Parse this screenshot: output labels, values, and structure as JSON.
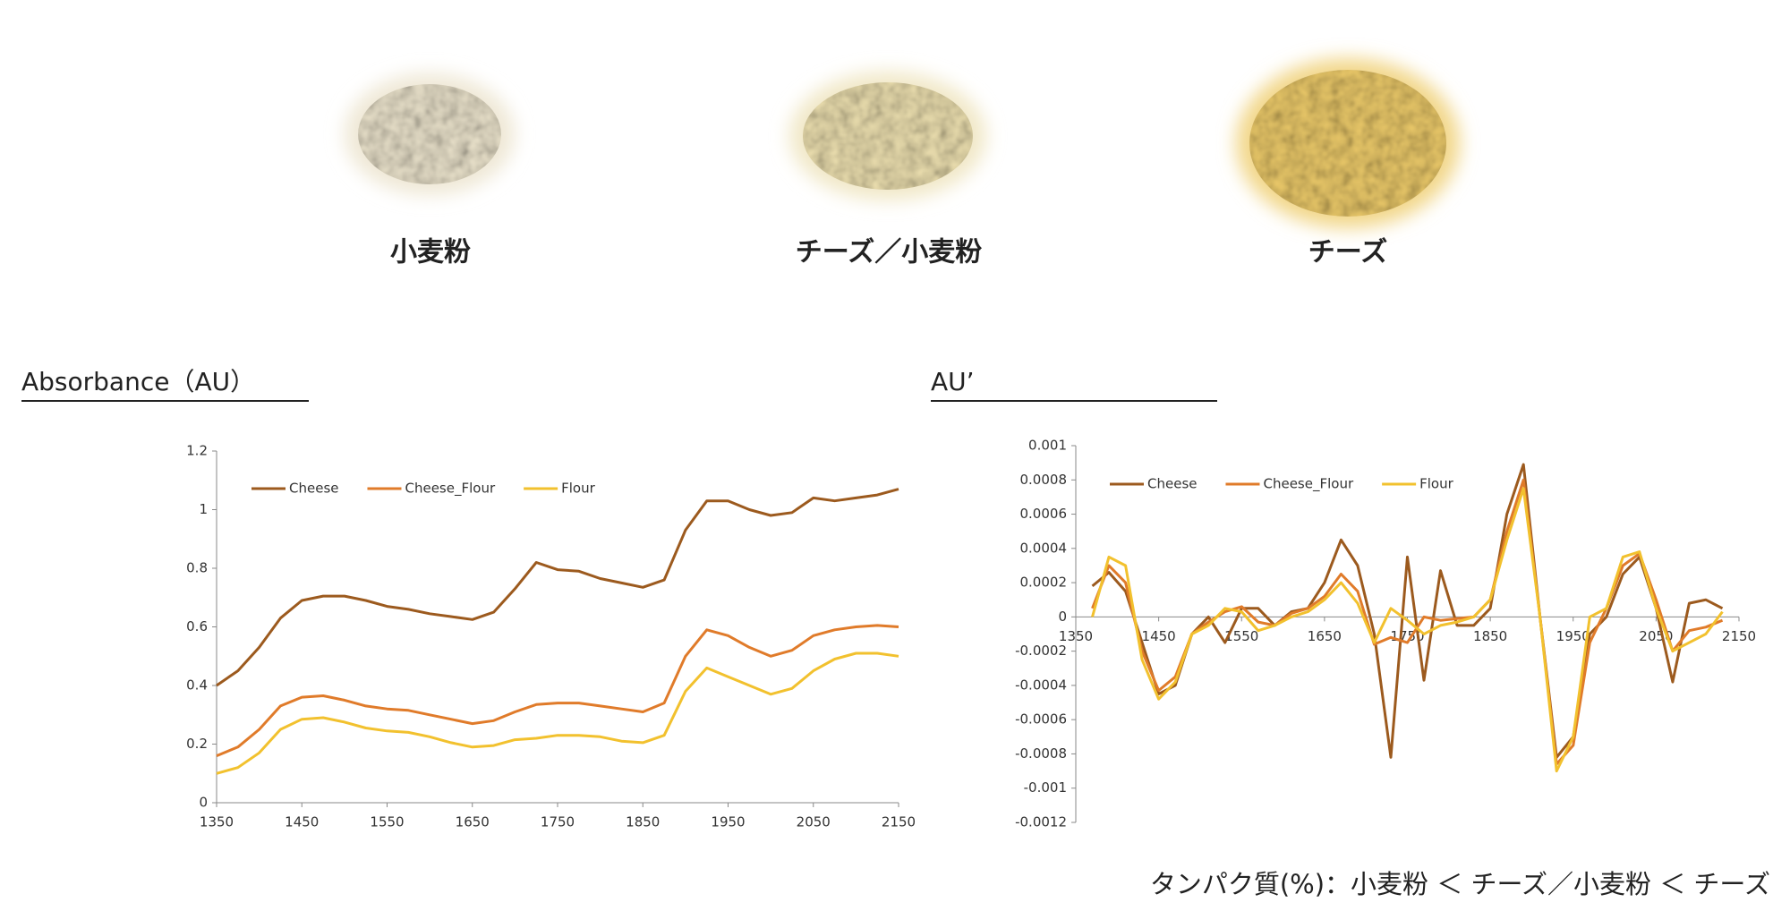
{
  "samples": [
    "小麦粉",
    "チーズ／小麦粉",
    "チーズ"
  ],
  "caption": "タンパク質(%)：小麦粉 ＜ チーズ／小麦粉 ＜ チーズ",
  "chart_data": [
    {
      "type": "line",
      "title": "Absorbance（AU）",
      "x": [
        1350,
        1375,
        1400,
        1425,
        1450,
        1475,
        1500,
        1525,
        1550,
        1575,
        1600,
        1625,
        1650,
        1675,
        1700,
        1725,
        1750,
        1775,
        1800,
        1825,
        1850,
        1875,
        1900,
        1925,
        1950,
        1975,
        2000,
        2025,
        2050,
        2075,
        2100,
        2125,
        2150
      ],
      "series": [
        {
          "name": "Cheese",
          "color": "#9c5a1e",
          "values": [
            0.4,
            0.45,
            0.53,
            0.63,
            0.69,
            0.705,
            0.705,
            0.69,
            0.67,
            0.66,
            0.645,
            0.635,
            0.625,
            0.65,
            0.73,
            0.82,
            0.795,
            0.79,
            0.765,
            0.75,
            0.735,
            0.76,
            0.93,
            1.03,
            1.03,
            1.0,
            0.98,
            0.99,
            1.04,
            1.03,
            1.04,
            1.05,
            1.07
          ]
        },
        {
          "name": "Cheese_Flour",
          "color": "#e07b2a",
          "values": [
            0.16,
            0.19,
            0.25,
            0.33,
            0.36,
            0.365,
            0.35,
            0.33,
            0.32,
            0.315,
            0.3,
            0.285,
            0.27,
            0.28,
            0.31,
            0.335,
            0.34,
            0.34,
            0.33,
            0.32,
            0.31,
            0.34,
            0.5,
            0.59,
            0.57,
            0.53,
            0.5,
            0.52,
            0.57,
            0.59,
            0.6,
            0.605,
            0.6
          ]
        },
        {
          "name": "Flour",
          "color": "#f2c12e",
          "values": [
            0.1,
            0.12,
            0.17,
            0.25,
            0.285,
            0.29,
            0.275,
            0.255,
            0.245,
            0.24,
            0.225,
            0.205,
            0.19,
            0.195,
            0.215,
            0.22,
            0.23,
            0.23,
            0.225,
            0.21,
            0.205,
            0.23,
            0.38,
            0.46,
            0.43,
            0.4,
            0.37,
            0.39,
            0.45,
            0.49,
            0.51,
            0.51,
            0.5
          ]
        }
      ],
      "xlim": [
        1350,
        2150
      ],
      "xticks": [
        1350,
        1450,
        1550,
        1650,
        1750,
        1850,
        1950,
        2050,
        2150
      ],
      "ylim": [
        0,
        1.2
      ],
      "yticks": [
        0,
        0.2,
        0.4,
        0.6,
        0.8,
        1,
        1.2
      ]
    },
    {
      "type": "line",
      "title": "AU’",
      "x": [
        1370,
        1390,
        1410,
        1430,
        1450,
        1470,
        1490,
        1510,
        1530,
        1550,
        1570,
        1590,
        1610,
        1630,
        1650,
        1670,
        1690,
        1710,
        1730,
        1750,
        1770,
        1790,
        1810,
        1830,
        1850,
        1870,
        1890,
        1910,
        1930,
        1950,
        1970,
        1990,
        2010,
        2030,
        2050,
        2070,
        2090,
        2110,
        2130
      ],
      "series": [
        {
          "name": "Cheese",
          "color": "#9c5a1e",
          "values": [
            0.00018,
            0.00026,
            0.00015,
            -0.00015,
            -0.00045,
            -0.0004,
            -0.0001,
            0,
            -0.00015,
            5e-05,
            5e-05,
            -5e-05,
            3e-05,
            5e-05,
            0.0002,
            0.00045,
            0.0003,
            -0.0001,
            -0.00082,
            0.00035,
            -0.00037,
            0.00027,
            -5e-05,
            -5e-05,
            5e-05,
            0.0006,
            0.00089,
            0,
            -0.00082,
            -0.0007,
            -0.0001,
            0,
            0.00025,
            0.00035,
            5e-05,
            -0.00038,
            8e-05,
            0.0001,
            5e-05
          ]
        },
        {
          "name": "Cheese_Flour",
          "color": "#e07b2a",
          "values": [
            5e-05,
            0.0003,
            0.0002,
            -0.0002,
            -0.00043,
            -0.00035,
            -0.0001,
            -3e-05,
            3e-05,
            6e-05,
            -3e-05,
            -5e-05,
            2e-05,
            5e-05,
            0.00012,
            0.00025,
            0.00015,
            -0.00016,
            -0.00012,
            -0.00015,
            0,
            -2e-05,
            -1e-05,
            0,
            0.0001,
            0.0005,
            0.0008,
            0,
            -0.00086,
            -0.00075,
            -0.00015,
            5e-05,
            0.0003,
            0.00037,
            0.0001,
            -0.0002,
            -8e-05,
            -6e-05,
            -2e-05
          ]
        },
        {
          "name": "Flour",
          "color": "#f2c12e",
          "values": [
            0,
            0.00035,
            0.0003,
            -0.00025,
            -0.00048,
            -0.00038,
            -0.0001,
            -5e-05,
            5e-05,
            3e-05,
            -8e-05,
            -5e-05,
            0,
            3e-05,
            0.0001,
            0.0002,
            8e-05,
            -0.00015,
            5e-05,
            -2e-05,
            -0.0001,
            -5e-05,
            -3e-05,
            0,
            0.0001,
            0.00045,
            0.00075,
            0,
            -0.0009,
            -0.0007,
            0,
            5e-05,
            0.00035,
            0.00038,
            5e-05,
            -0.0002,
            -0.00015,
            -0.0001,
            3e-05
          ]
        }
      ],
      "xlim": [
        1350,
        2150
      ],
      "xticks": [
        1350,
        1450,
        1550,
        1650,
        1750,
        1850,
        1950,
        2050,
        2150
      ],
      "ylim": [
        -0.0012,
        0.001
      ],
      "yticks": [
        0.001,
        0.0008,
        0.0006,
        0.0004,
        0.0002,
        0,
        -0.0002,
        -0.0004,
        -0.0006,
        -0.0008,
        -0.001,
        -0.0012
      ]
    }
  ]
}
